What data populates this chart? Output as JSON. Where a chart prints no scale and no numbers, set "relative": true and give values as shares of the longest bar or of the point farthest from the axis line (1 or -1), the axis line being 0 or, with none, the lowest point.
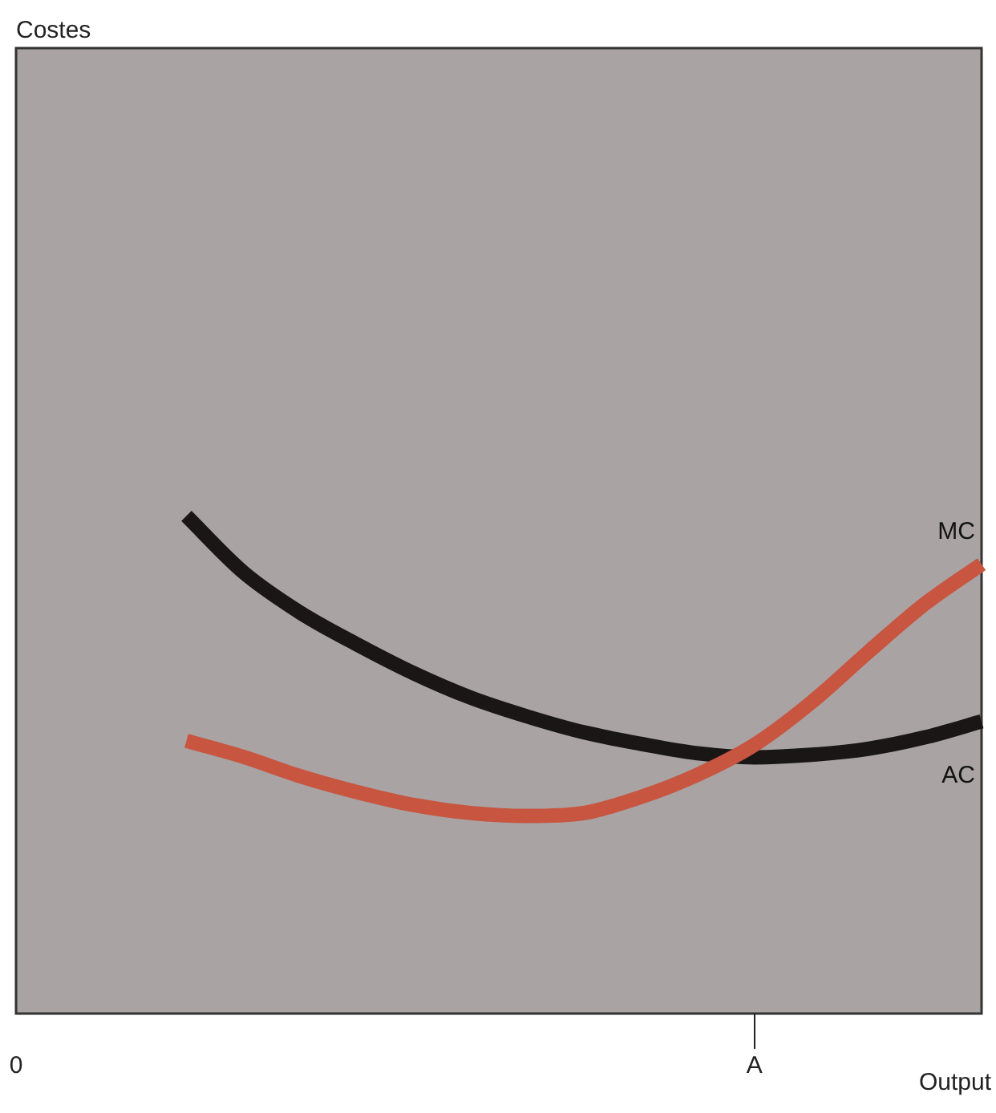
{
  "chart_data": {
    "type": "line",
    "relative": true,
    "annotations": [
      "Costes"
    ],
    "xlabel": "Output",
    "legend": false,
    "grid": false,
    "marker": "none",
    "categories": [
      "0",
      null,
      null,
      null,
      null,
      null,
      null,
      null,
      null,
      null,
      null,
      null,
      null,
      "A",
      null,
      null,
      null,
      null
    ],
    "series": [
      {
        "name": "MC",
        "color": "#c8553f",
        "values": [
          null,
          null,
          null,
          0.548,
          0.516,
          0.477,
          0.445,
          0.419,
          0.403,
          0.397,
          0.403,
          0.435,
          0.48,
          0.54,
          0.625,
          0.726,
          0.823,
          0.903
        ]
      },
      {
        "name": "AC",
        "color": "#1a1616",
        "values": [
          null,
          null,
          null,
          1,
          0.887,
          0.806,
          0.742,
          0.684,
          0.635,
          0.597,
          0.565,
          0.542,
          0.523,
          0.515,
          0.52,
          0.532,
          0.555,
          0.587
        ]
      }
    ]
  }
}
